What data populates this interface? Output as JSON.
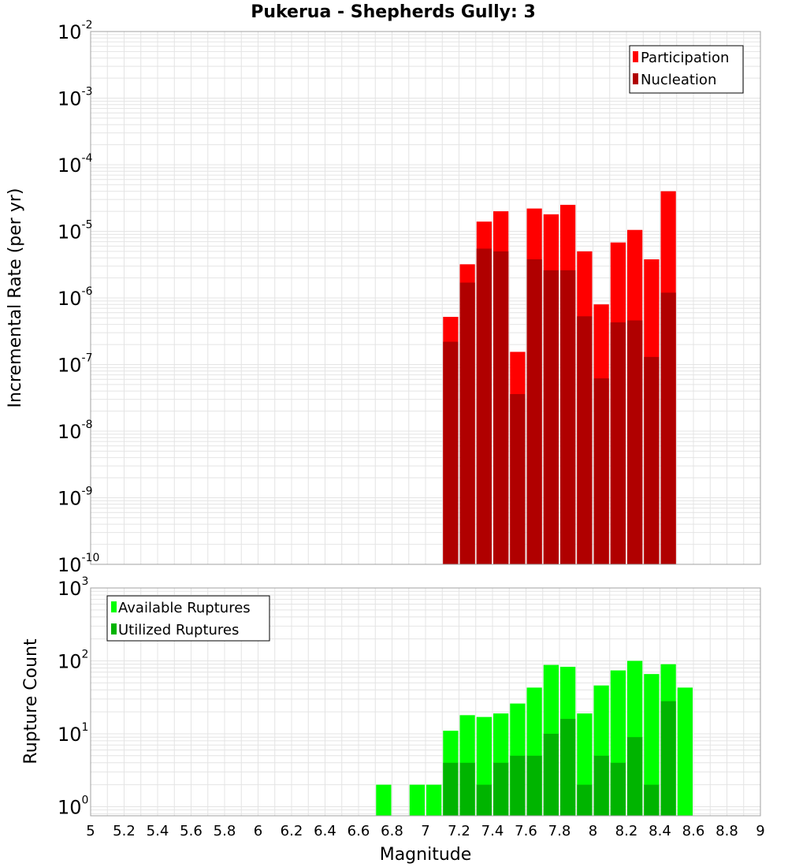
{
  "title": "Pukerua - Shepherds Gully: 3",
  "colors": {
    "participation": "#ff0000",
    "nucleation": "#b00000",
    "available": "#00ff00",
    "utilized": "#00b400",
    "grid": "#e4e4e4",
    "frame": "#a0a0a0"
  },
  "chart_data": [
    {
      "type": "bar",
      "ylabel": "Incremental Rate (per yr)",
      "yscale": "log",
      "ylim_exp": [
        -10,
        -2
      ],
      "ytick_base": "10",
      "ytick_exponents": [
        "-10",
        "-9",
        "-8",
        "-7",
        "-6",
        "-5",
        "-4",
        "-3",
        "-2"
      ],
      "xlim": [
        5,
        9
      ],
      "grid": true,
      "legend_position": "top-right",
      "legend": [
        "Participation",
        "Nucleation"
      ],
      "x": [
        7.15,
        7.25,
        7.35,
        7.45,
        7.55,
        7.65,
        7.75,
        7.85,
        7.95,
        8.05,
        8.15,
        8.25,
        8.35,
        8.45
      ],
      "series": [
        {
          "name": "Participation",
          "values": [
            5.2e-07,
            3.2e-06,
            1.4e-05,
            2e-05,
            1.55e-07,
            2.2e-05,
            1.8e-05,
            2.5e-05,
            5e-06,
            8e-07,
            6.8e-06,
            1.05e-05,
            3.8e-06,
            4e-05
          ]
        },
        {
          "name": "Nucleation",
          "values": [
            2.2e-07,
            1.7e-06,
            5.5e-06,
            5e-06,
            3.6e-08,
            3.8e-06,
            2.6e-06,
            2.6e-06,
            5.3e-07,
            6.2e-08,
            4.3e-07,
            4.6e-07,
            1.3e-07,
            1.2e-06
          ]
        }
      ]
    },
    {
      "type": "bar",
      "ylabel": "Rupture Count",
      "xlabel": "Magnitude",
      "yscale": "log",
      "ylim": [
        0.75,
        1000
      ],
      "ytick_base": "10",
      "ytick_exponents": [
        "0",
        "1",
        "2",
        "3"
      ],
      "xlim": [
        5,
        9
      ],
      "xticks": [
        "5",
        "5.2",
        "5.4",
        "5.6",
        "5.8",
        "6",
        "6.2",
        "6.4",
        "6.6",
        "6.8",
        "7",
        "7.2",
        "7.4",
        "7.6",
        "7.8",
        "8",
        "8.2",
        "8.4",
        "8.6",
        "8.8",
        "9"
      ],
      "grid": true,
      "legend_position": "top-left",
      "legend": [
        "Available Ruptures",
        "Utilized Ruptures"
      ],
      "x": [
        6.75,
        6.95,
        7.05,
        7.15,
        7.25,
        7.35,
        7.45,
        7.55,
        7.65,
        7.75,
        7.85,
        7.95,
        8.05,
        8.15,
        8.25,
        8.35,
        8.45,
        8.55
      ],
      "series": [
        {
          "name": "Available Ruptures",
          "values": [
            2,
            2,
            2,
            11,
            18,
            17,
            19,
            26,
            43,
            88,
            83,
            19,
            46,
            74,
            100,
            66,
            90,
            43
          ]
        },
        {
          "name": "Utilized Ruptures",
          "values": [
            0,
            0,
            0,
            4,
            4,
            2,
            4,
            5,
            5,
            10,
            16,
            2,
            5,
            4,
            9,
            2,
            28,
            0
          ]
        }
      ]
    }
  ]
}
